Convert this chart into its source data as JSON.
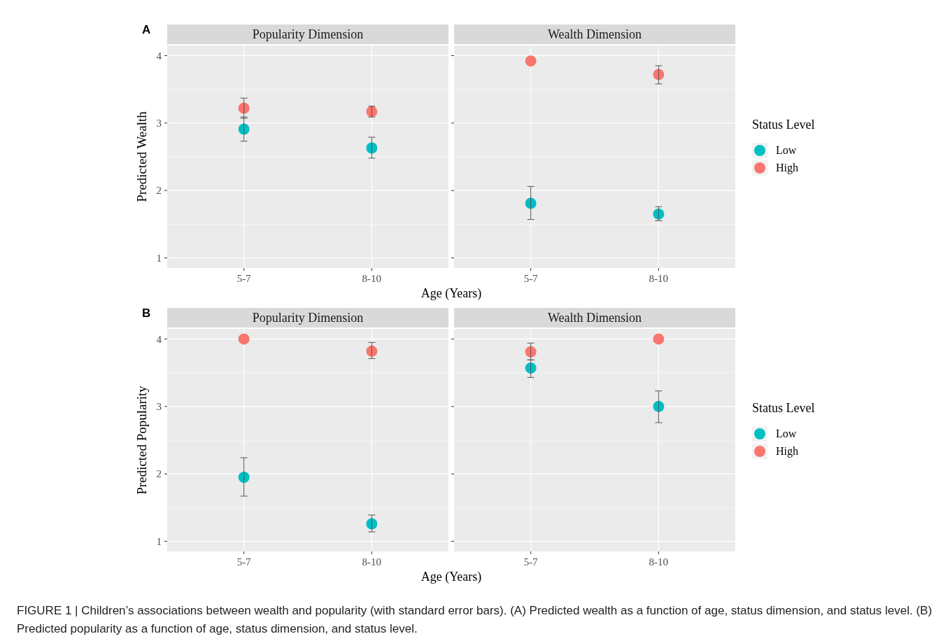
{
  "chart_data": [
    {
      "type": "scatter",
      "title": "Popularity Dimension",
      "annotations": [
        "A"
      ],
      "ylabel": "Predicted Wealth",
      "xlabel": "Age (Years)",
      "categories": [
        "5-7",
        "8-10"
      ],
      "ylim": [
        0.85,
        4.15
      ],
      "yticks": [
        1,
        2,
        3,
        4
      ],
      "grid": true,
      "marker": "circle",
      "legend": false,
      "series": [
        {
          "color": "#00bfc4",
          "values": [
            2.91,
            2.63
          ],
          "errors": [
            [
              2.73,
              3.09
            ],
            [
              2.48,
              2.79
            ]
          ]
        },
        {
          "color": "#f8766d",
          "values": [
            3.22,
            3.17
          ],
          "errors": [
            [
              3.07,
              3.37
            ],
            [
              3.09,
              3.25
            ]
          ]
        }
      ]
    },
    {
      "type": "scatter",
      "title": "Wealth Dimension",
      "categories": [
        "5-7",
        "8-10"
      ],
      "ylim": [
        0.85,
        4.15
      ],
      "yticks": [
        1,
        2,
        3,
        4
      ],
      "grid": true,
      "marker": "circle",
      "tick_labels": "x",
      "legend": "right",
      "legend_title": "Status Level",
      "series": [
        {
          "name": "Low",
          "color": "#00bfc4",
          "values": [
            1.81,
            1.65
          ],
          "errors": [
            [
              1.57,
              2.06
            ],
            [
              1.55,
              1.76
            ]
          ]
        },
        {
          "name": "High",
          "color": "#f8766d",
          "values": [
            3.92,
            3.72
          ],
          "errors": [
            null,
            [
              3.58,
              3.85
            ]
          ]
        }
      ]
    },
    {
      "type": "scatter",
      "title": "Popularity Dimension",
      "annotations": [
        "B"
      ],
      "ylabel": "Predicted Popularity",
      "xlabel": "Age (Years)",
      "categories": [
        "5-7",
        "8-10"
      ],
      "ylim": [
        0.85,
        4.15
      ],
      "yticks": [
        1,
        2,
        3,
        4
      ],
      "grid": true,
      "marker": "circle",
      "legend": false,
      "series": [
        {
          "color": "#00bfc4",
          "values": [
            1.95,
            1.26
          ],
          "errors": [
            [
              1.67,
              2.24
            ],
            [
              1.14,
              1.39
            ]
          ]
        },
        {
          "color": "#f8766d",
          "values": [
            4.0,
            3.82
          ],
          "errors": [
            null,
            [
              3.71,
              3.95
            ]
          ]
        }
      ]
    },
    {
      "type": "scatter",
      "title": "Wealth Dimension",
      "categories": [
        "5-7",
        "8-10"
      ],
      "ylim": [
        0.85,
        4.15
      ],
      "yticks": [
        1,
        2,
        3,
        4
      ],
      "grid": true,
      "marker": "circle",
      "tick_labels": "x",
      "legend": "right",
      "legend_title": "Status Level",
      "annotations": [
        "FIGURE 1 | Children’s associations between wealth and popularity (with standard error bars). (A) Predicted wealth as a function of age, status dimension, and status level. (B) Predicted popularity as a function of age, status dimension, and status level."
      ],
      "series": [
        {
          "name": "Low",
          "color": "#00bfc4",
          "values": [
            3.57,
            3.0
          ],
          "errors": [
            [
              3.43,
              3.69
            ],
            [
              2.76,
              3.23
            ]
          ]
        },
        {
          "name": "High",
          "color": "#f8766d",
          "values": [
            3.81,
            4.0
          ],
          "errors": [
            [
              3.69,
              3.94
            ],
            null
          ]
        }
      ]
    }
  ]
}
